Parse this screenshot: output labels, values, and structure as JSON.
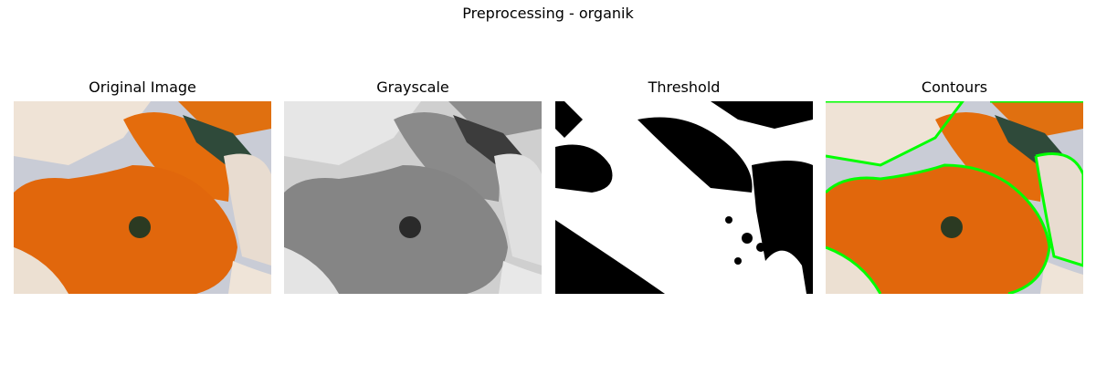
{
  "figure": {
    "title": "Preprocessing - organik"
  },
  "panels": [
    {
      "title": "Original Image"
    },
    {
      "title": "Grayscale"
    },
    {
      "title": "Threshold"
    },
    {
      "title": "Contours"
    }
  ]
}
